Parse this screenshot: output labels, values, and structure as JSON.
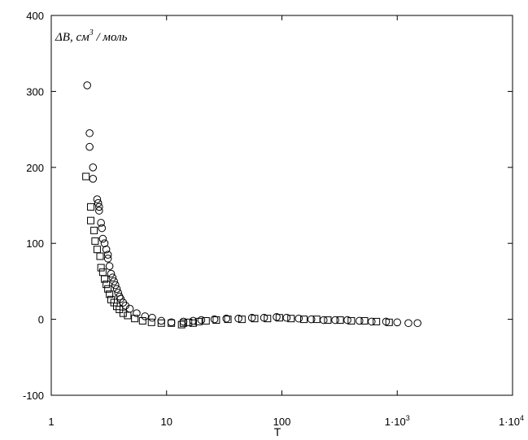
{
  "chart_data": {
    "type": "scatter",
    "title": "",
    "xlabel": "T",
    "ylabel": {
      "main": "ΔB, см",
      "sup": "3",
      "unit": " / моль"
    },
    "xscale": "log",
    "xlim": [
      1,
      10000
    ],
    "ylim": [
      -100,
      400
    ],
    "x_ticks": [
      {
        "value": 1,
        "label": "1"
      },
      {
        "value": 10,
        "label": "10"
      },
      {
        "value": 100,
        "label": "100"
      },
      {
        "value": 1000,
        "label": "1·10",
        "sup": "3"
      },
      {
        "value": 10000,
        "label": "1·10",
        "sup": "4"
      }
    ],
    "y_ticks": [
      -100,
      0,
      100,
      200,
      300,
      400
    ],
    "grid": false,
    "series": [
      {
        "marker": "circle",
        "points": [
          [
            2.05,
            308
          ],
          [
            2.15,
            245
          ],
          [
            2.15,
            227
          ],
          [
            2.3,
            200
          ],
          [
            2.3,
            185
          ],
          [
            2.5,
            158
          ],
          [
            2.55,
            153
          ],
          [
            2.6,
            148
          ],
          [
            2.6,
            143
          ],
          [
            2.7,
            127
          ],
          [
            2.75,
            120
          ],
          [
            2.8,
            106
          ],
          [
            2.9,
            100
          ],
          [
            3.0,
            92
          ],
          [
            3.1,
            85
          ],
          [
            3.1,
            80
          ],
          [
            3.2,
            70
          ],
          [
            3.3,
            60
          ],
          [
            3.4,
            55
          ],
          [
            3.5,
            50
          ],
          [
            3.6,
            45
          ],
          [
            3.7,
            40
          ],
          [
            3.8,
            35
          ],
          [
            3.9,
            30
          ],
          [
            4.0,
            27
          ],
          [
            4.2,
            22
          ],
          [
            4.4,
            18
          ],
          [
            4.8,
            14
          ],
          [
            5.5,
            8
          ],
          [
            6.5,
            4
          ],
          [
            7.5,
            2
          ],
          [
            9,
            -2
          ],
          [
            11,
            -4
          ],
          [
            14,
            -3
          ],
          [
            17,
            -2
          ],
          [
            20,
            -1
          ],
          [
            26,
            0
          ],
          [
            33,
            1
          ],
          [
            42,
            1
          ],
          [
            55,
            2
          ],
          [
            70,
            2
          ],
          [
            90,
            3
          ],
          [
            110,
            2
          ],
          [
            140,
            1
          ],
          [
            180,
            0
          ],
          [
            230,
            -1
          ],
          [
            290,
            -1
          ],
          [
            370,
            -1
          ],
          [
            470,
            -2
          ],
          [
            600,
            -3
          ],
          [
            800,
            -3
          ],
          [
            1000,
            -4
          ],
          [
            1250,
            -5
          ],
          [
            1500,
            -5
          ]
        ]
      },
      {
        "marker": "square",
        "points": [
          [
            2.0,
            188
          ],
          [
            2.2,
            148
          ],
          [
            2.2,
            130
          ],
          [
            2.35,
            117
          ],
          [
            2.4,
            103
          ],
          [
            2.5,
            92
          ],
          [
            2.65,
            83
          ],
          [
            2.7,
            68
          ],
          [
            2.8,
            62
          ],
          [
            2.9,
            53
          ],
          [
            3.0,
            46
          ],
          [
            3.1,
            40
          ],
          [
            3.2,
            33
          ],
          [
            3.3,
            26
          ],
          [
            3.5,
            22
          ],
          [
            3.7,
            17
          ],
          [
            3.9,
            13
          ],
          [
            4.2,
            8
          ],
          [
            4.6,
            5
          ],
          [
            5.3,
            1
          ],
          [
            6.2,
            -2
          ],
          [
            7.4,
            -4
          ],
          [
            9,
            -5
          ],
          [
            11,
            -5
          ],
          [
            13.5,
            -7
          ],
          [
            14,
            -5
          ],
          [
            15.5,
            -4
          ],
          [
            17,
            -5
          ],
          [
            19,
            -3
          ],
          [
            22,
            -2
          ],
          [
            27,
            -1
          ],
          [
            34,
            0
          ],
          [
            45,
            0
          ],
          [
            58,
            1
          ],
          [
            75,
            1
          ],
          [
            95,
            2
          ],
          [
            120,
            1
          ],
          [
            155,
            0
          ],
          [
            200,
            0
          ],
          [
            250,
            -1
          ],
          [
            320,
            -1
          ],
          [
            400,
            -2
          ],
          [
            520,
            -2
          ],
          [
            660,
            -3
          ],
          [
            850,
            -4
          ]
        ]
      }
    ]
  }
}
